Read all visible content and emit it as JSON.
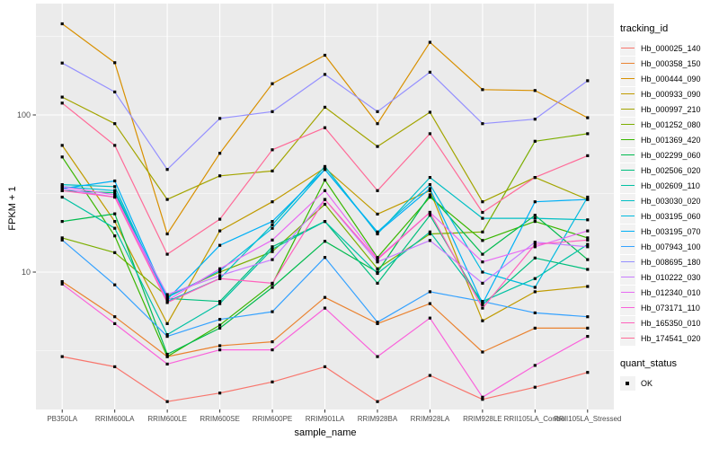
{
  "figure": {
    "background": "#FFFFFF",
    "panel_background": "#EBEBEB",
    "gridline_color": "#FFFFFF",
    "tick_label_color": "#4D4D4D",
    "tick_mark_color": "#333333",
    "point_color": "#000000"
  },
  "chart_data": {
    "type": "line",
    "title": "",
    "xlabel": "sample_name",
    "ylabel": "FPKM + 1",
    "y_scale": "log10",
    "ylim": [
      1.35,
      512
    ],
    "grid": "on",
    "legend_position": "right",
    "y_ticks": [
      {
        "value": 100,
        "label": "100"
      },
      {
        "value": 10,
        "label": "10"
      }
    ],
    "y_minor_gridlines": [
      316.23,
      31.62,
      3.162
    ],
    "categories": [
      "PB350LA",
      "RRIM600LA",
      "RRIM600LE",
      "RRIM600SE",
      "RRIM600PE",
      "RRIM901LA",
      "RRIM928BA",
      "RRIM928LA",
      "RRIM928LE",
      "RRII105LA_Control",
      "RRII105LA_Stressed"
    ],
    "legend_title": "tracking_id",
    "point_marker": "black-square",
    "series": [
      {
        "name": "Hb_000025_140",
        "color": "#F8766D",
        "values": [
          2.9,
          2.5,
          1.5,
          1.7,
          2.0,
          2.5,
          1.5,
          2.2,
          1.55,
          1.85,
          2.3
        ]
      },
      {
        "name": "Hb_000358_150",
        "color": "#EA8331",
        "values": [
          8.7,
          5.2,
          2.9,
          3.4,
          3.6,
          6.9,
          4.7,
          6.3,
          3.1,
          4.4,
          4.4
        ]
      },
      {
        "name": "Hb_000444_090",
        "color": "#D89000",
        "values": [
          380,
          215,
          17.5,
          57,
          158,
          240,
          88,
          290,
          145,
          143,
          96
        ]
      },
      {
        "name": "Hb_000933_090",
        "color": "#C09B00",
        "values": [
          64,
          21,
          4.7,
          18.3,
          28,
          46,
          23.4,
          33,
          4.9,
          7.5,
          8.1
        ]
      },
      {
        "name": "Hb_000997_210",
        "color": "#A3A500",
        "values": [
          130,
          88,
          29,
          41,
          44,
          112,
          63,
          104,
          28,
          40,
          29
        ]
      },
      {
        "name": "Hb_001252_080",
        "color": "#7CAE00",
        "values": [
          16.5,
          13.3,
          7.0,
          10.0,
          13.5,
          27,
          10.5,
          17.5,
          18,
          68,
          76
        ]
      },
      {
        "name": "Hb_001369_420",
        "color": "#39B600",
        "values": [
          54,
          17,
          2.9,
          4.6,
          8.4,
          38.5,
          12.4,
          30,
          15.9,
          21,
          16.5
        ]
      },
      {
        "name": "Hb_002299_060",
        "color": "#00BB4E",
        "values": [
          21,
          23.5,
          3.0,
          4.4,
          8.0,
          15.7,
          10.0,
          31,
          13,
          23,
          12
        ]
      },
      {
        "name": "Hb_002506_020",
        "color": "#00BF7D",
        "values": [
          33,
          32,
          6.8,
          6.5,
          14.5,
          21,
          8.5,
          23,
          6.2,
          12.3,
          10.4
        ]
      },
      {
        "name": "Hb_002609_110",
        "color": "#00C1A3",
        "values": [
          30,
          19,
          4.0,
          6.3,
          14,
          21,
          9.8,
          18,
          6.5,
          9.1,
          15
        ]
      },
      {
        "name": "Hb_003030_020",
        "color": "#00BFC4",
        "values": [
          36,
          35,
          6.5,
          9.1,
          20,
          47,
          17.5,
          40,
          22,
          22,
          21.5
        ]
      },
      {
        "name": "Hb_003195_060",
        "color": "#00BAE0",
        "values": [
          35,
          33,
          6.9,
          10.2,
          19,
          45,
          18,
          36,
          10,
          8.0,
          30
        ]
      },
      {
        "name": "Hb_003195_070",
        "color": "#00B0F6",
        "values": [
          34,
          38,
          6.7,
          14.8,
          21,
          45,
          17.8,
          34,
          6.3,
          28,
          29
        ]
      },
      {
        "name": "Hb_007943_100",
        "color": "#35A2FF",
        "values": [
          16,
          8.3,
          3.9,
          5.0,
          5.6,
          12.4,
          4.8,
          7.5,
          6.5,
          5.5,
          5.2
        ]
      },
      {
        "name": "Hb_008695_180",
        "color": "#9590FF",
        "values": [
          214,
          140,
          45,
          95,
          105,
          181,
          105,
          187,
          88,
          94,
          165
        ]
      },
      {
        "name": "Hb_010222_030",
        "color": "#C77CFF",
        "values": [
          34,
          30,
          7.2,
          9.5,
          12,
          29,
          11.6,
          15.9,
          8.5,
          15.5,
          14.5
        ]
      },
      {
        "name": "Hb_012340_010",
        "color": "#E76BF3",
        "values": [
          35,
          31,
          6.6,
          10.5,
          16,
          33,
          12.2,
          24,
          11.6,
          14.5,
          18.3
        ]
      },
      {
        "name": "Hb_073171_110",
        "color": "#FA62DB",
        "values": [
          8.4,
          4.7,
          2.6,
          3.2,
          3.2,
          5.9,
          2.9,
          5.1,
          1.6,
          2.55,
          3.9
        ]
      },
      {
        "name": "Hb_165350_010",
        "color": "#FF62BC",
        "values": [
          33,
          30,
          6.4,
          9.1,
          8.5,
          29,
          12.0,
          24,
          5.9,
          15.0,
          16
        ]
      },
      {
        "name": "Hb_174541_020",
        "color": "#FF6A98",
        "values": [
          119,
          64,
          13,
          21.7,
          60,
          83,
          33,
          76,
          24,
          40,
          55
        ]
      }
    ],
    "quant_legend": {
      "title": "quant_status",
      "items": [
        {
          "label": "OK",
          "marker": "black-square"
        }
      ]
    }
  }
}
